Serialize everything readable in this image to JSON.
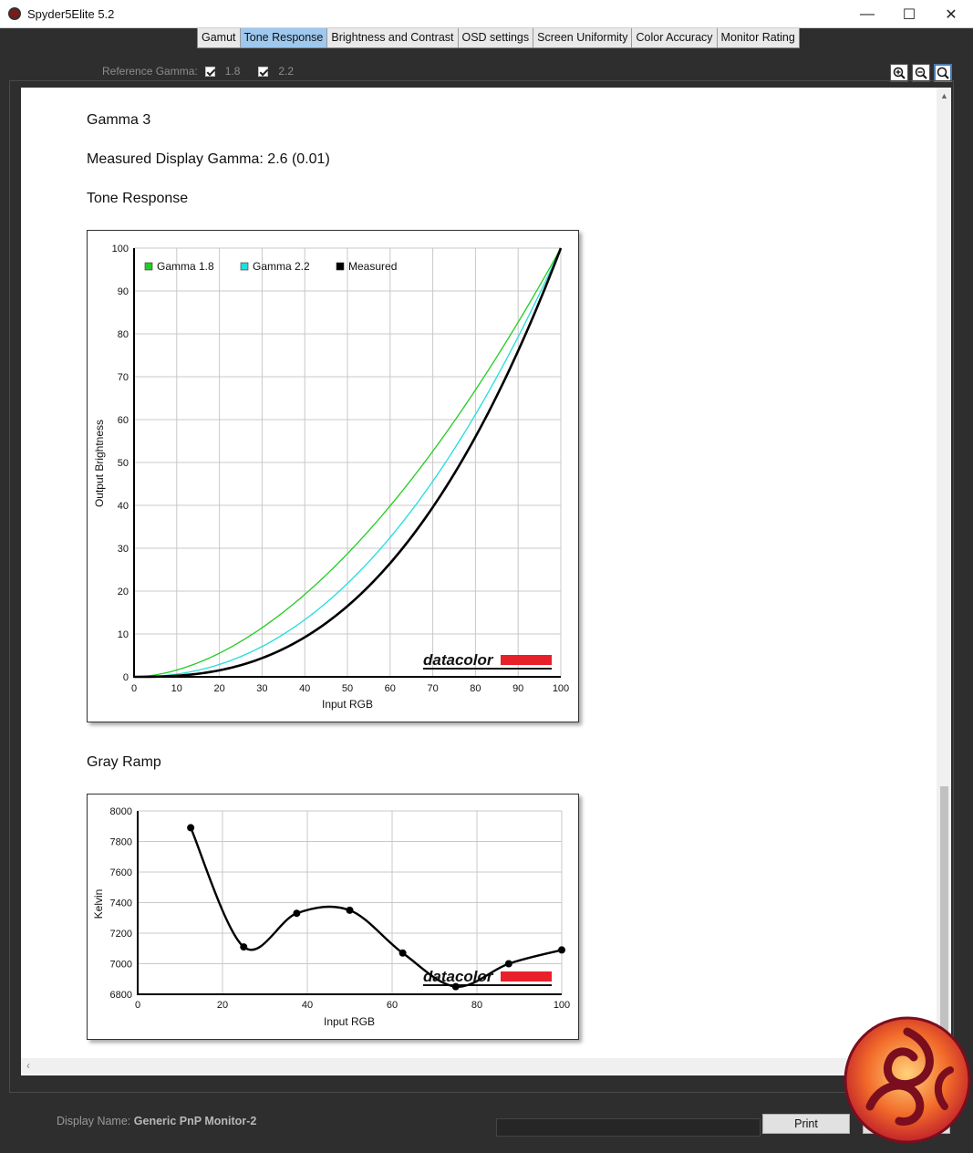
{
  "window": {
    "title": "Spyder5Elite 5.2",
    "minimize": "—",
    "maximize": "☐",
    "close": "✕"
  },
  "tabs": [
    {
      "label": "Gamut",
      "active": false
    },
    {
      "label": "Tone Response",
      "active": true
    },
    {
      "label": "Brightness and Contrast",
      "active": false
    },
    {
      "label": "OSD settings",
      "active": false
    },
    {
      "label": "Screen Uniformity",
      "active": false
    },
    {
      "label": "Color Accuracy",
      "active": false
    },
    {
      "label": "Monitor Rating",
      "active": false
    }
  ],
  "reference_gamma": {
    "label": "Reference Gamma:",
    "options": [
      {
        "value": "1.8",
        "checked": true
      },
      {
        "value": "2.2",
        "checked": true
      }
    ]
  },
  "zoom": {
    "zoom_in_icon": "zoom-in-icon",
    "zoom_out_icon": "zoom-out-icon",
    "zoom_fit_icon": "zoom-fit-icon"
  },
  "report": {
    "gamma_heading": "Gamma 3",
    "measured_gamma": "Measured Display Gamma: 2.6 (0.01)",
    "tone_response_heading": "Tone Response",
    "gray_ramp_heading": "Gray Ramp"
  },
  "chart_data": [
    {
      "type": "line",
      "title": "",
      "xlabel": "Input RGB",
      "ylabel": "Output Brightness",
      "xlim": [
        0,
        100
      ],
      "ylim": [
        0,
        100
      ],
      "xticks": [
        "0",
        "10",
        "20",
        "30",
        "40",
        "50",
        "60",
        "70",
        "80",
        "90",
        "100"
      ],
      "yticks": [
        "0",
        "10",
        "20",
        "30",
        "40",
        "50",
        "60",
        "70",
        "80",
        "90",
        "100"
      ],
      "grid": true,
      "legend_position": "top-left",
      "series": [
        {
          "name": "Gamma 1.8",
          "color": "#22cc22",
          "gamma": 1.8
        },
        {
          "name": "Gamma 2.2",
          "color": "#22dddd",
          "gamma": 2.2
        },
        {
          "name": "Measured",
          "color": "#000000",
          "gamma": 2.6
        }
      ],
      "brand_logo": "datacolor"
    },
    {
      "type": "line",
      "title": "",
      "xlabel": "Input RGB",
      "ylabel": "Kelvin",
      "xlim": [
        0,
        100
      ],
      "ylim": [
        6800,
        8000
      ],
      "xticks": [
        "0",
        "20",
        "40",
        "60",
        "80",
        "100"
      ],
      "yticks": [
        "6800",
        "7000",
        "7200",
        "7400",
        "7600",
        "7800",
        "8000"
      ],
      "grid": true,
      "series": [
        {
          "color": "#000000",
          "x": [
            12.5,
            25,
            37.5,
            50,
            62.5,
            75,
            87.5,
            100
          ],
          "y": [
            7890,
            7110,
            7330,
            7350,
            7070,
            6850,
            7000,
            7090
          ]
        }
      ],
      "brand_logo": "datacolor"
    }
  ],
  "footer": {
    "display_label": "Display Name:",
    "display_value": "Generic PnP Monitor-2",
    "print_label": "Print"
  }
}
